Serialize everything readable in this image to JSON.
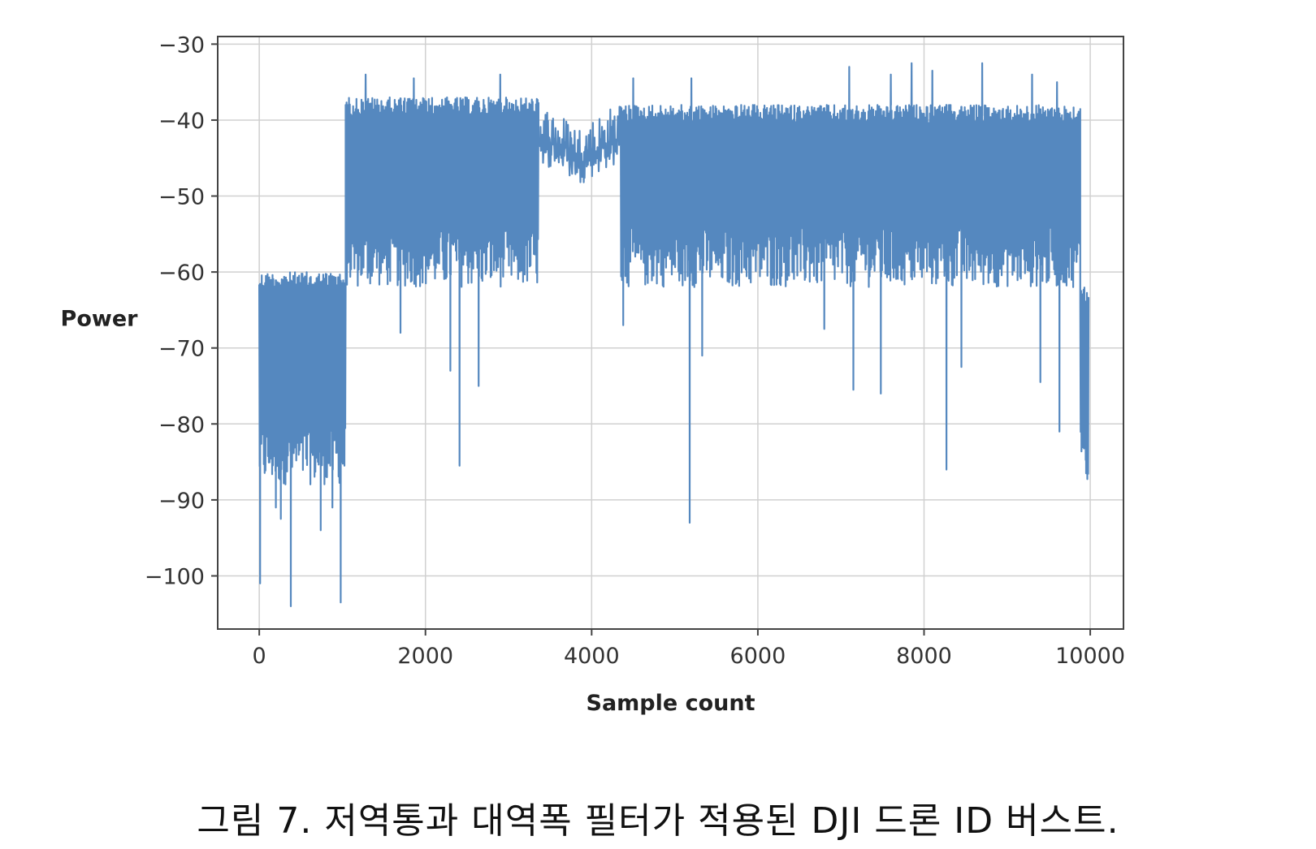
{
  "caption": "그림 7. 저역통과 대역폭 필터가 적용된 DJI 드론 ID 버스트.",
  "chart_data": {
    "type": "line",
    "title": "",
    "xlabel": "Sample count",
    "ylabel": "Power",
    "xlim": [
      -500,
      10400
    ],
    "ylim": [
      -107,
      -29
    ],
    "xticks": [
      0,
      2000,
      4000,
      6000,
      8000,
      10000
    ],
    "xtick_labels": [
      "0",
      "2000",
      "4000",
      "6000",
      "8000",
      "10000"
    ],
    "yticks": [
      -30,
      -40,
      -50,
      -60,
      -70,
      -80,
      -90,
      -100
    ],
    "ytick_labels": [
      "−30",
      "−40",
      "−50",
      "−60",
      "−70",
      "−80",
      "−90",
      "−100"
    ],
    "grid": true,
    "legend": "none",
    "line_color": "#5588bf",
    "series": [
      {
        "segments": [
          {
            "x_start": 0,
            "x_end": 1040,
            "top": -60,
            "bottom": -86
          },
          {
            "x_start": 1040,
            "x_end": 3360,
            "top": -37,
            "bottom": -60
          },
          {
            "x_start": 3360,
            "x_end": 4350,
            "top": -42,
            "bottom": -46
          },
          {
            "x_start": 4350,
            "x_end": 9880,
            "top": -38,
            "bottom": -60
          },
          {
            "x_start": 9880,
            "x_end": 9980,
            "top": -62,
            "bottom": -86
          }
        ],
        "peaks": [
          {
            "x": 1280,
            "y": -34
          },
          {
            "x": 1860,
            "y": -34.5
          },
          {
            "x": 2900,
            "y": -34
          },
          {
            "x": 4500,
            "y": -34.5
          },
          {
            "x": 5200,
            "y": -34.5
          },
          {
            "x": 7100,
            "y": -33
          },
          {
            "x": 7600,
            "y": -34
          },
          {
            "x": 7850,
            "y": -32.5
          },
          {
            "x": 8100,
            "y": -33.5
          },
          {
            "x": 8700,
            "y": -32.5
          },
          {
            "x": 9300,
            "y": -34
          },
          {
            "x": 9600,
            "y": -35
          }
        ],
        "dips": [
          {
            "x": 10,
            "y": -101
          },
          {
            "x": 200,
            "y": -91
          },
          {
            "x": 260,
            "y": -92.5
          },
          {
            "x": 380,
            "y": -104
          },
          {
            "x": 740,
            "y": -94
          },
          {
            "x": 880,
            "y": -91
          },
          {
            "x": 980,
            "y": -103.5
          },
          {
            "x": 1700,
            "y": -68
          },
          {
            "x": 2300,
            "y": -73
          },
          {
            "x": 2410,
            "y": -85.5
          },
          {
            "x": 2640,
            "y": -75
          },
          {
            "x": 4380,
            "y": -67
          },
          {
            "x": 5180,
            "y": -93
          },
          {
            "x": 5330,
            "y": -71
          },
          {
            "x": 6800,
            "y": -67.5
          },
          {
            "x": 7150,
            "y": -75.5
          },
          {
            "x": 7480,
            "y": -76
          },
          {
            "x": 8270,
            "y": -86
          },
          {
            "x": 8450,
            "y": -72.5
          },
          {
            "x": 9400,
            "y": -74.5
          },
          {
            "x": 9630,
            "y": -81
          },
          {
            "x": 9950,
            "y": -86.5
          }
        ]
      }
    ]
  }
}
